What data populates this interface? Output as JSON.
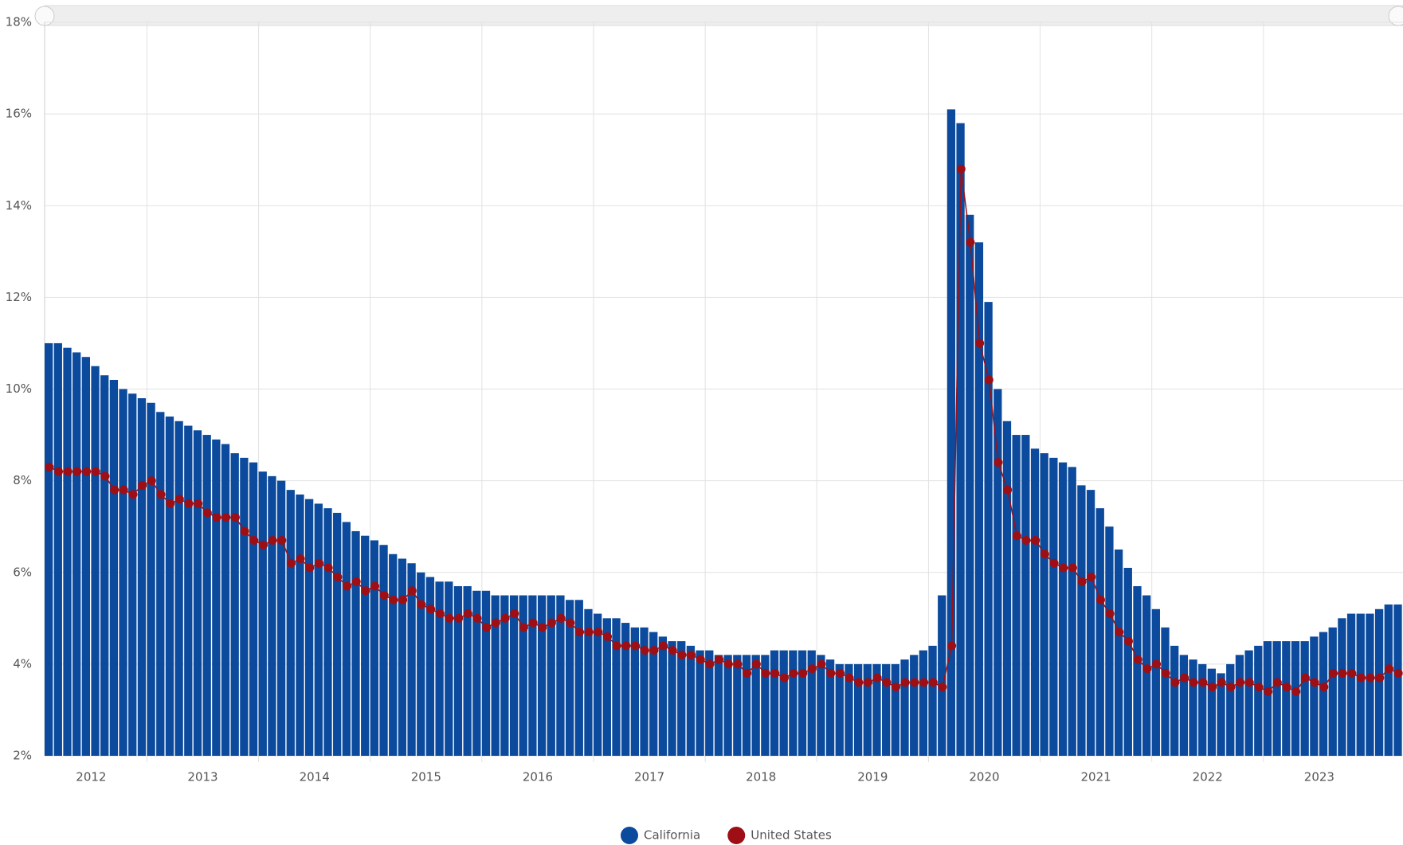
{
  "chart_data": {
    "type": "bar",
    "categories": [
      null,
      null,
      null,
      null,
      null,
      "2012",
      null,
      null,
      null,
      null,
      null,
      null,
      null,
      null,
      null,
      null,
      null,
      "2013",
      null,
      null,
      null,
      null,
      null,
      null,
      null,
      null,
      null,
      null,
      null,
      "2014",
      null,
      null,
      null,
      null,
      null,
      null,
      null,
      null,
      null,
      null,
      null,
      "2015",
      null,
      null,
      null,
      null,
      null,
      null,
      null,
      null,
      null,
      null,
      null,
      "2016",
      null,
      null,
      null,
      null,
      null,
      null,
      null,
      null,
      null,
      null,
      null,
      "2017",
      null,
      null,
      null,
      null,
      null,
      null,
      null,
      null,
      null,
      null,
      null,
      "2018",
      null,
      null,
      null,
      null,
      null,
      null,
      null,
      null,
      null,
      null,
      null,
      "2019",
      null,
      null,
      null,
      null,
      null,
      null,
      null,
      null,
      null,
      null,
      null,
      "2020",
      null,
      null,
      null,
      null,
      null,
      null,
      null,
      null,
      null,
      null,
      null,
      "2021",
      null,
      null,
      null,
      null,
      null,
      null,
      null,
      null,
      null,
      null,
      null,
      "2022",
      null,
      null,
      null,
      null,
      null,
      null,
      null,
      null,
      null,
      null,
      null,
      "2023",
      null,
      null,
      null,
      null,
      null,
      null,
      null,
      null
    ],
    "series": [
      {
        "name": "California",
        "type": "bar",
        "color": "#0b4a9c",
        "values": [
          11.0,
          11.0,
          10.9,
          10.8,
          10.7,
          10.5,
          10.3,
          10.2,
          10.0,
          9.9,
          9.8,
          9.7,
          9.5,
          9.4,
          9.3,
          9.2,
          9.1,
          9.0,
          8.9,
          8.8,
          8.6,
          8.5,
          8.4,
          8.2,
          8.1,
          8.0,
          7.8,
          7.7,
          7.6,
          7.5,
          7.4,
          7.3,
          7.1,
          6.9,
          6.8,
          6.7,
          6.6,
          6.4,
          6.3,
          6.2,
          6.0,
          5.9,
          5.8,
          5.8,
          5.7,
          5.7,
          5.6,
          5.6,
          5.5,
          5.5,
          5.5,
          5.5,
          5.5,
          5.5,
          5.5,
          5.5,
          5.4,
          5.4,
          5.2,
          5.1,
          5.0,
          5.0,
          4.9,
          4.8,
          4.8,
          4.7,
          4.6,
          4.5,
          4.5,
          4.4,
          4.3,
          4.3,
          4.2,
          4.2,
          4.2,
          4.2,
          4.2,
          4.2,
          4.3,
          4.3,
          4.3,
          4.3,
          4.3,
          4.2,
          4.1,
          4.0,
          4.0,
          4.0,
          4.0,
          4.0,
          4.0,
          4.0,
          4.1,
          4.2,
          4.3,
          4.4,
          5.5,
          16.1,
          15.8,
          13.8,
          13.2,
          11.9,
          10.0,
          9.3,
          9.0,
          9.0,
          8.7,
          8.6,
          8.5,
          8.4,
          8.3,
          7.9,
          7.8,
          7.4,
          7.0,
          6.5,
          6.1,
          5.7,
          5.5,
          5.2,
          4.8,
          4.4,
          4.2,
          4.1,
          4.0,
          3.9,
          3.8,
          4.0,
          4.2,
          4.3,
          4.4,
          4.5,
          4.5,
          4.5,
          4.5,
          4.5,
          4.6,
          4.7,
          4.8,
          5.0,
          5.1,
          5.1,
          5.1,
          5.2,
          5.3,
          5.3
        ]
      },
      {
        "name": "United States",
        "type": "line",
        "color": "#9e0f15",
        "values": [
          8.3,
          8.2,
          8.2,
          8.2,
          8.2,
          8.2,
          8.1,
          7.8,
          7.8,
          7.7,
          7.9,
          8.0,
          7.7,
          7.5,
          7.6,
          7.5,
          7.5,
          7.3,
          7.2,
          7.2,
          7.2,
          6.9,
          6.7,
          6.6,
          6.7,
          6.7,
          6.2,
          6.3,
          6.1,
          6.2,
          6.1,
          5.9,
          5.7,
          5.8,
          5.6,
          5.7,
          5.5,
          5.4,
          5.4,
          5.6,
          5.3,
          5.2,
          5.1,
          5.0,
          5.0,
          5.1,
          5.0,
          4.8,
          4.9,
          5.0,
          5.1,
          4.8,
          4.9,
          4.8,
          4.9,
          5.0,
          4.9,
          4.7,
          4.7,
          4.7,
          4.6,
          4.4,
          4.4,
          4.4,
          4.3,
          4.3,
          4.4,
          4.3,
          4.2,
          4.2,
          4.1,
          4.0,
          4.1,
          4.0,
          4.0,
          3.8,
          4.0,
          3.8,
          3.8,
          3.7,
          3.8,
          3.8,
          3.9,
          4.0,
          3.8,
          3.8,
          3.7,
          3.6,
          3.6,
          3.7,
          3.6,
          3.5,
          3.6,
          3.6,
          3.6,
          3.6,
          3.5,
          4.4,
          14.8,
          13.2,
          11.0,
          10.2,
          8.4,
          7.8,
          6.8,
          6.7,
          6.7,
          6.4,
          6.2,
          6.1,
          6.1,
          5.8,
          5.9,
          5.4,
          5.1,
          4.7,
          4.5,
          4.1,
          3.9,
          4.0,
          3.8,
          3.6,
          3.7,
          3.6,
          3.6,
          3.5,
          3.6,
          3.5,
          3.6,
          3.6,
          3.5,
          3.4,
          3.6,
          3.5,
          3.4,
          3.7,
          3.6,
          3.5,
          3.8,
          3.8,
          3.8,
          3.7,
          3.7,
          3.7,
          3.9,
          3.8
        ]
      }
    ],
    "ylim": [
      2,
      18
    ],
    "yticks": [
      {
        "value": 2,
        "label": "2%"
      },
      {
        "value": 4,
        "label": "4%"
      },
      {
        "value": 6,
        "label": "6%"
      },
      {
        "value": 8,
        "label": "8%"
      },
      {
        "value": 10,
        "label": "10%"
      },
      {
        "value": 12,
        "label": "12%"
      },
      {
        "value": 14,
        "label": "14%"
      },
      {
        "value": 16,
        "label": "16%"
      },
      {
        "value": 18,
        "label": "18%"
      }
    ],
    "grid": true,
    "legend": "bottom"
  }
}
